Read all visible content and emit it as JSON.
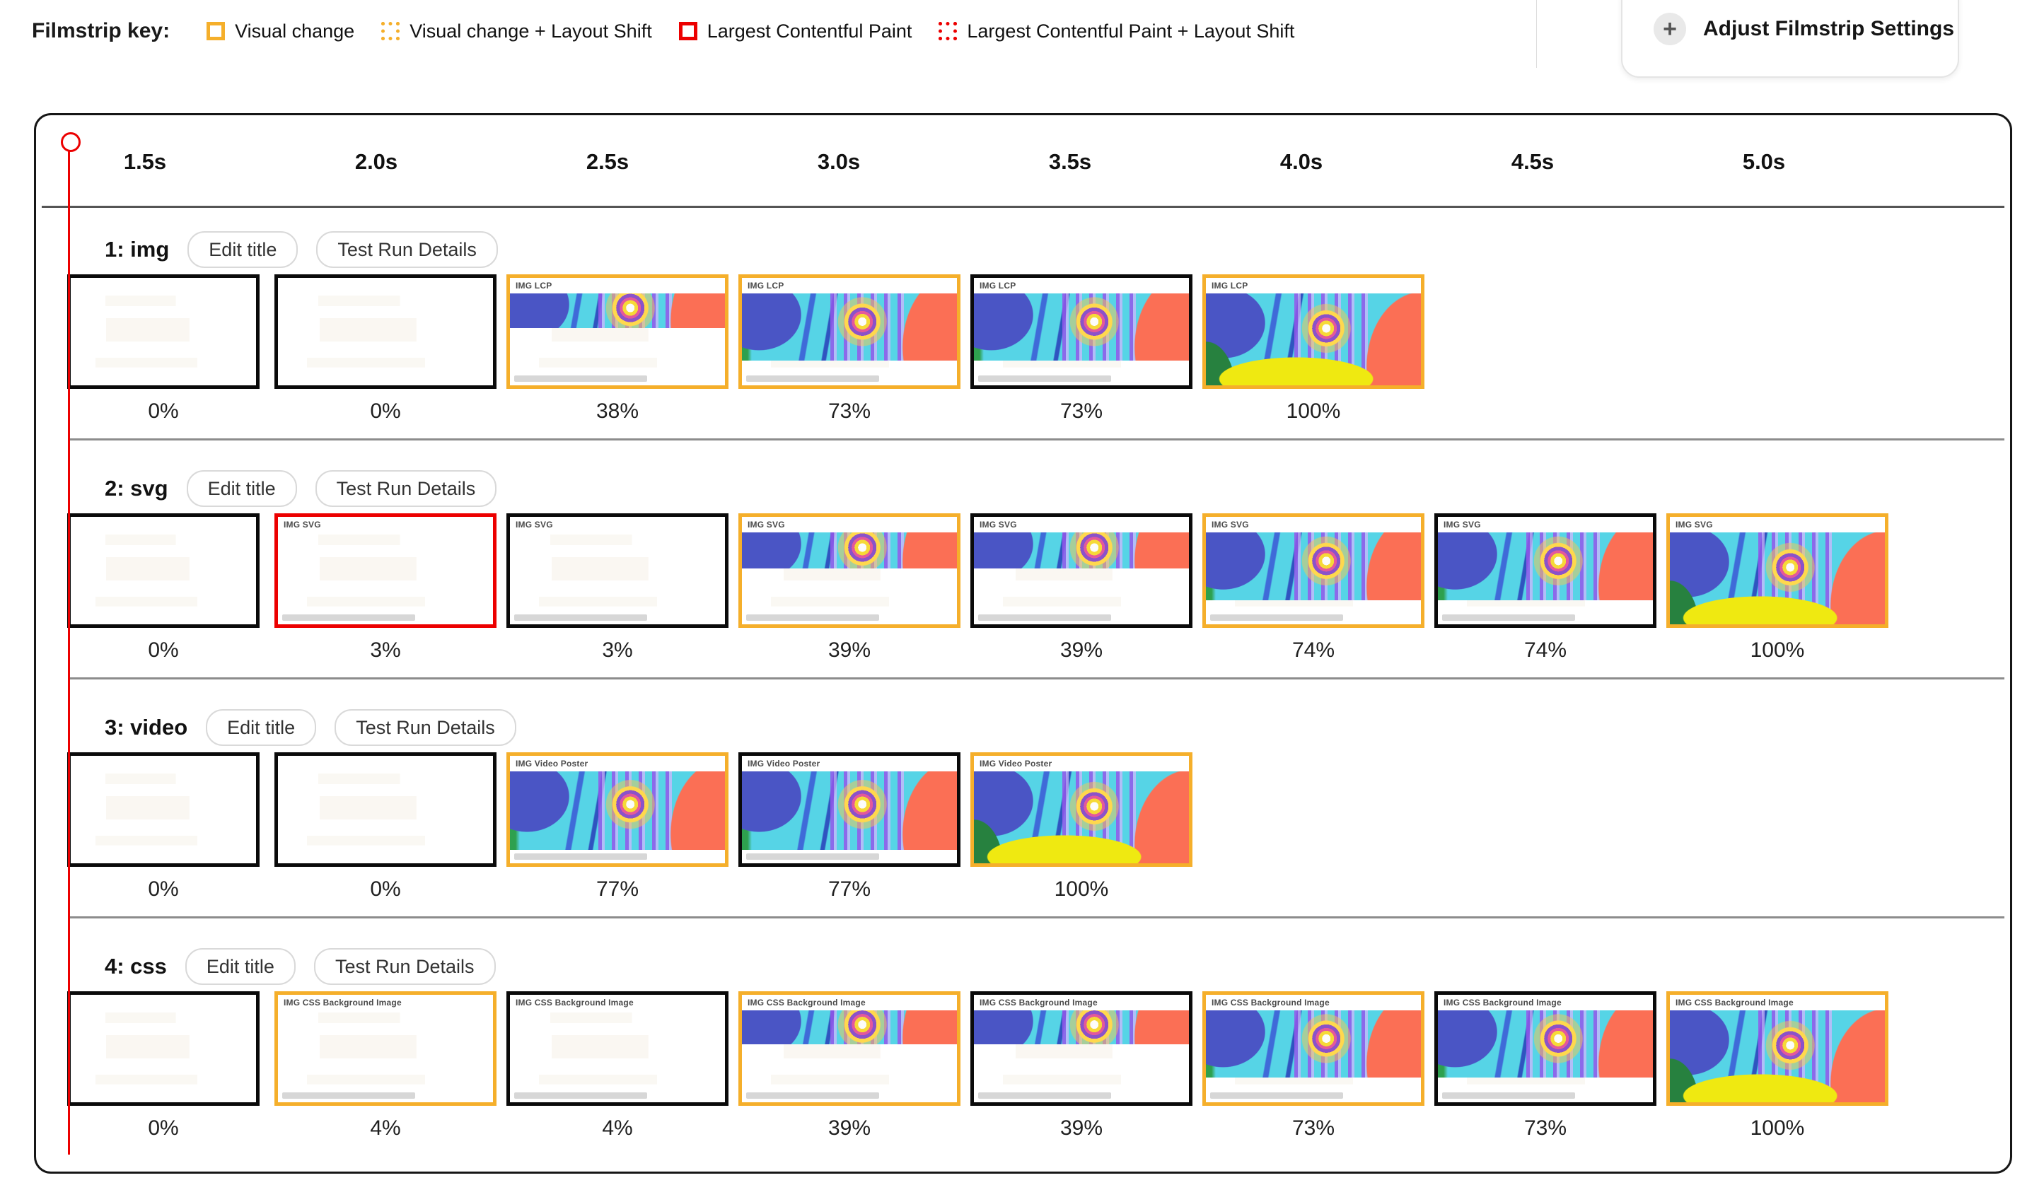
{
  "colors": {
    "orange": "#F5AF2B",
    "red": "#EC0000",
    "frame_black": "#0A0A0A"
  },
  "legend": {
    "title": "Filmstrip key:",
    "items": [
      {
        "label": "Visual change",
        "style": "solid",
        "color": "orange",
        "swatch": "visual-change-swatch"
      },
      {
        "label": "Visual change + Layout Shift",
        "style": "dotted",
        "color": "orange",
        "swatch": "visual-change-layout-shift-swatch"
      },
      {
        "label": "Largest Contentful Paint",
        "style": "solid",
        "color": "red",
        "swatch": "largest-contentful-paint-swatch"
      },
      {
        "label": "Largest Contentful Paint + Layout Shift",
        "style": "dotted",
        "color": "red",
        "swatch": "largest-contentful-paint-layout-shift-swatch"
      }
    ]
  },
  "settings_button": {
    "label": "Adjust Filmstrip Settings",
    "icon": "plus-icon"
  },
  "timeline": {
    "ticks": [
      "1.5s",
      "2.0s",
      "2.5s",
      "3.0s",
      "3.5s",
      "4.0s",
      "4.5s",
      "5.0s"
    ]
  },
  "rows": [
    {
      "title": "1: img",
      "slug": "img",
      "edit_label": "Edit title",
      "details_label": "Test Run Details",
      "thumb_caption": "IMG LCP",
      "frames": [
        {
          "col": 0,
          "border": "black",
          "pct": "0%",
          "fill": 0,
          "caption": false
        },
        {
          "col": 1,
          "border": "black",
          "pct": "0%",
          "fill": 0,
          "caption": false
        },
        {
          "col": 2,
          "border": "orange",
          "pct": "38%",
          "fill": 38,
          "caption": true
        },
        {
          "col": 3,
          "border": "orange",
          "pct": "73%",
          "fill": 73,
          "caption": true
        },
        {
          "col": 4,
          "border": "black",
          "pct": "73%",
          "fill": 73,
          "caption": true
        },
        {
          "col": 5,
          "border": "orange",
          "pct": "100%",
          "fill": 100,
          "caption": true
        }
      ]
    },
    {
      "title": "2: svg",
      "slug": "svg",
      "edit_label": "Edit title",
      "details_label": "Test Run Details",
      "thumb_caption": "IMG SVG",
      "frames": [
        {
          "col": 0,
          "border": "black",
          "pct": "0%",
          "fill": 0,
          "caption": false
        },
        {
          "col": 1,
          "border": "red",
          "pct": "3%",
          "fill": 0,
          "caption": true
        },
        {
          "col": 2,
          "border": "black",
          "pct": "3%",
          "fill": 0,
          "caption": true
        },
        {
          "col": 3,
          "border": "orange",
          "pct": "39%",
          "fill": 39,
          "caption": true
        },
        {
          "col": 4,
          "border": "black",
          "pct": "39%",
          "fill": 39,
          "caption": true
        },
        {
          "col": 5,
          "border": "orange",
          "pct": "74%",
          "fill": 74,
          "caption": true
        },
        {
          "col": 6,
          "border": "black",
          "pct": "74%",
          "fill": 74,
          "caption": true
        },
        {
          "col": 7,
          "border": "orange",
          "pct": "100%",
          "fill": 100,
          "caption": true
        }
      ]
    },
    {
      "title": "3: video",
      "slug": "video",
      "edit_label": "Edit title",
      "details_label": "Test Run Details",
      "thumb_caption": "IMG Video Poster",
      "frames": [
        {
          "col": 0,
          "border": "black",
          "pct": "0%",
          "fill": 0,
          "caption": false
        },
        {
          "col": 1,
          "border": "black",
          "pct": "0%",
          "fill": 0,
          "caption": false
        },
        {
          "col": 2,
          "border": "orange",
          "pct": "77%",
          "fill": 85,
          "caption": true
        },
        {
          "col": 3,
          "border": "black",
          "pct": "77%",
          "fill": 85,
          "caption": true
        },
        {
          "col": 4,
          "border": "orange",
          "pct": "100%",
          "fill": 100,
          "caption": true
        }
      ]
    },
    {
      "title": "4: css",
      "slug": "css",
      "edit_label": "Edit title",
      "details_label": "Test Run Details",
      "thumb_caption": "IMG CSS Background Image",
      "frames": [
        {
          "col": 0,
          "border": "black",
          "pct": "0%",
          "fill": 0,
          "caption": false
        },
        {
          "col": 1,
          "border": "orange",
          "pct": "4%",
          "fill": 0,
          "caption": true
        },
        {
          "col": 2,
          "border": "black",
          "pct": "4%",
          "fill": 0,
          "caption": true
        },
        {
          "col": 3,
          "border": "orange",
          "pct": "39%",
          "fill": 37,
          "caption": true
        },
        {
          "col": 4,
          "border": "black",
          "pct": "39%",
          "fill": 37,
          "caption": true
        },
        {
          "col": 5,
          "border": "orange",
          "pct": "73%",
          "fill": 73,
          "caption": true
        },
        {
          "col": 6,
          "border": "black",
          "pct": "73%",
          "fill": 73,
          "caption": true
        },
        {
          "col": 7,
          "border": "orange",
          "pct": "100%",
          "fill": 100,
          "caption": true
        }
      ]
    }
  ]
}
